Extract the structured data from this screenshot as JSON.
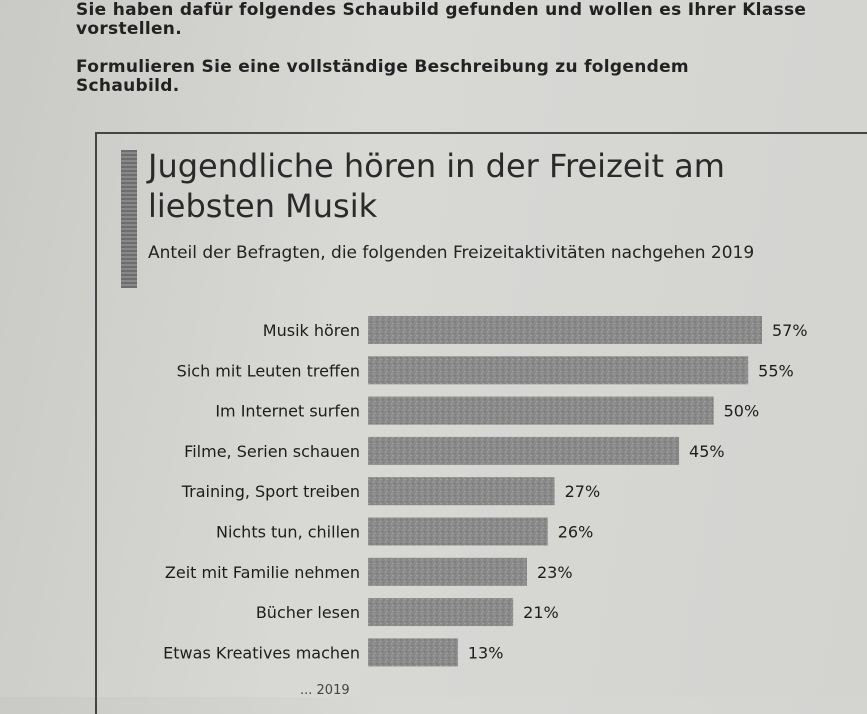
{
  "instructions": {
    "line1": "Sie haben dafür folgendes Schaubild gefunden und wollen es Ihrer Klasse vorstellen.",
    "line2": "Formulieren Sie eine vollständige Beschreibung zu folgendem Schaubild."
  },
  "footer": {
    "text": "... 2019"
  },
  "colors": {
    "bar": "#8a8a8a",
    "accent": "#777777",
    "text": "#1d1d1d"
  },
  "chart_data": {
    "type": "bar",
    "orientation": "horizontal",
    "title": "Jugendliche hören in der Freizeit am liebsten Musik",
    "subtitle": "Anteil der Befragten, die folgenden Freizeitaktivitäten nachgehen 2019",
    "categories": [
      "Musik hören",
      "Sich mit Leuten treffen",
      "Im Internet surfen",
      "Filme, Serien schauen",
      "Training, Sport treiben",
      "Nichts tun, chillen",
      "Zeit mit Familie nehmen",
      "Bücher lesen",
      "Etwas Kreatives machen"
    ],
    "values": [
      57,
      55,
      50,
      45,
      27,
      26,
      23,
      21,
      13
    ],
    "value_labels": [
      "57%",
      "55%",
      "50%",
      "45%",
      "27%",
      "26%",
      "23%",
      "21%",
      "13%"
    ],
    "xlim": [
      0,
      57
    ],
    "grid": false,
    "legend": "none"
  }
}
